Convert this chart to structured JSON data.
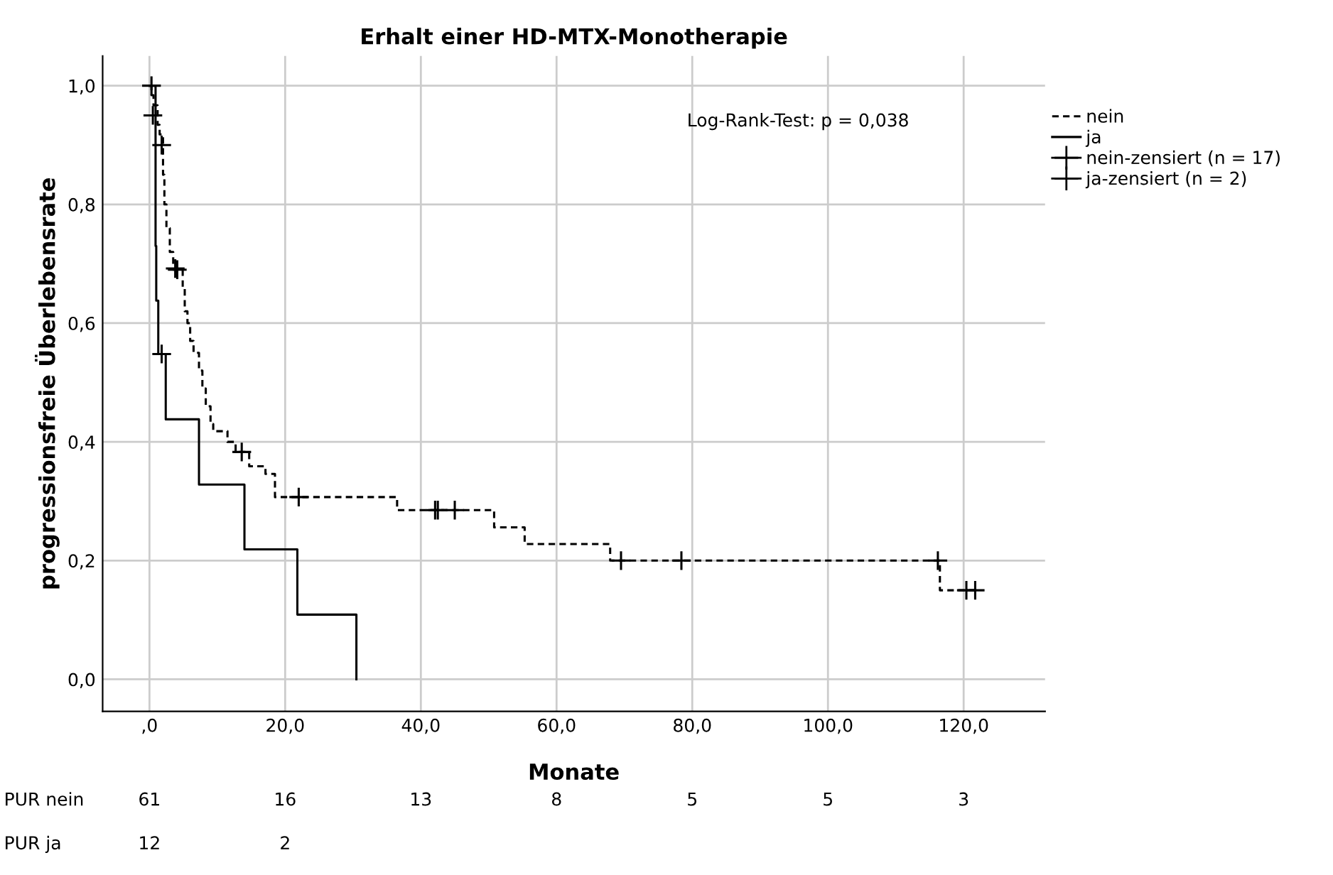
{
  "chart_data": {
    "type": "step",
    "title": "Erhalt einer HD-MTX-Monotherapie",
    "xlabel": "Monate",
    "ylabel": "progressionsfreie Überlebensrate",
    "xlim": [
      -6.9,
      132
    ],
    "ylim": [
      -0.054,
      1.05
    ],
    "xticks": [
      {
        "value": 0,
        "label": ",0"
      },
      {
        "value": 20,
        "label": "20,0"
      },
      {
        "value": 40,
        "label": "40,0"
      },
      {
        "value": 60,
        "label": "60,0"
      },
      {
        "value": 80,
        "label": "80,0"
      },
      {
        "value": 100,
        "label": "100,0"
      },
      {
        "value": 120,
        "label": "120,0"
      }
    ],
    "yticks": [
      {
        "value": 0,
        "label": "0,0"
      },
      {
        "value": 0.2,
        "label": "0,2"
      },
      {
        "value": 0.4,
        "label": "0,4"
      },
      {
        "value": 0.6,
        "label": "0,6"
      },
      {
        "value": 0.8,
        "label": "0,8"
      },
      {
        "value": 1.0,
        "label": "1,0"
      }
    ],
    "grid": true,
    "legend": "right",
    "series": [
      {
        "name": "nein",
        "color": "#000000",
        "line_style": "dashed",
        "x": [
          0,
          0.3,
          0.6,
          1.2,
          1.5,
          2.0,
          2.2,
          2.5,
          3.0,
          3.5,
          4.9,
          5.2,
          5.6,
          6.0,
          6.5,
          7.3,
          7.8,
          8.3,
          9.0,
          9.4,
          11.5,
          12.7,
          14.7,
          17.1,
          18.5,
          36.5,
          50.8,
          55.3,
          67.9,
          116.5,
          121.7
        ],
        "values": [
          1.0,
          0.984,
          0.967,
          0.934,
          0.918,
          0.85,
          0.8,
          0.76,
          0.72,
          0.69,
          0.66,
          0.62,
          0.6,
          0.57,
          0.55,
          0.52,
          0.49,
          0.46,
          0.43,
          0.418,
          0.4,
          0.383,
          0.359,
          0.346,
          0.307,
          0.285,
          0.256,
          0.228,
          0.2,
          0.15,
          0.15
        ]
      },
      {
        "name": "ja",
        "color": "#000000",
        "line_style": "solid",
        "x": [
          0,
          0.9,
          1.0,
          1.3,
          2.4,
          7.3,
          14.0,
          21.8,
          30.5
        ],
        "values": [
          1.0,
          0.73,
          0.638,
          0.548,
          0.438,
          0.328,
          0.219,
          0.109,
          0.0
        ]
      },
      {
        "name": "nein-zensiert (n = 17)",
        "type": "scatter",
        "marker": "cross",
        "color": "#000000",
        "x": [
          0.3,
          0.9,
          1.8,
          3.8,
          4.1,
          13.6,
          22.0,
          42.1,
          42.5,
          45.0,
          69.5,
          78.4,
          116.2,
          120.4,
          121.7
        ],
        "values": [
          1.0,
          null,
          0.9,
          0.692,
          0.69,
          0.383,
          0.307,
          0.285,
          0.285,
          0.285,
          0.2,
          0.2,
          0.2,
          0.15,
          0.15
        ]
      },
      {
        "name": "ja-zensiert (n = 2)",
        "type": "scatter",
        "marker": "cross",
        "color": "#000000",
        "x": [
          0.5,
          1.8
        ],
        "values": [
          0.95,
          0.548
        ]
      }
    ],
    "annotations": [
      "Log-Rank-Test: p = 0,038",
      "PUR nein",
      "61",
      "16",
      "13",
      "8",
      "5",
      "5",
      "3",
      "PUR ja",
      "12",
      "2"
    ]
  }
}
